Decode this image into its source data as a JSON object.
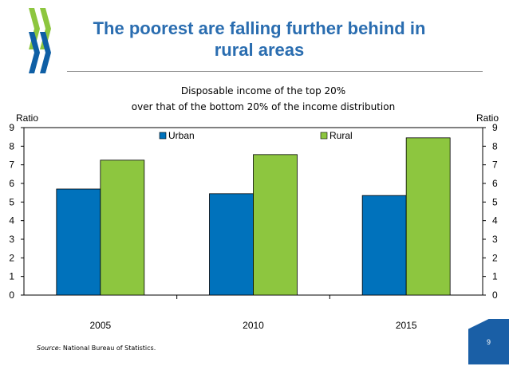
{
  "slide": {
    "title_line1": "The poorest are falling further behind in",
    "title_line2": "rural areas",
    "page_number": "9",
    "logo_icon": "oecd-logo-icon"
  },
  "source": {
    "label": "Source",
    "text": ": National Bureau of Statistics."
  },
  "colors": {
    "title": "#2a6db0",
    "urban": "#0072bc",
    "rural": "#8dc63f",
    "logo_green": "#8dc63f",
    "logo_blue": "#0f5fa5"
  },
  "chart_data": {
    "type": "bar",
    "title_line1": "Disposable income of the top 20%",
    "title_line2": "over that of the bottom 20% of the income distribution",
    "categories": [
      "2005",
      "2010",
      "2015"
    ],
    "series": [
      {
        "name": "Urban",
        "values": [
          5.7,
          5.45,
          5.35
        ]
      },
      {
        "name": "Rural",
        "values": [
          7.25,
          7.55,
          8.45
        ]
      }
    ],
    "ylabel_left": "Ratio",
    "ylabel_right": "Ratio",
    "ylim": [
      0,
      9
    ],
    "yticks": [
      0,
      1,
      2,
      3,
      4,
      5,
      6,
      7,
      8,
      9
    ],
    "legend_position": "top-center",
    "grid": false
  }
}
